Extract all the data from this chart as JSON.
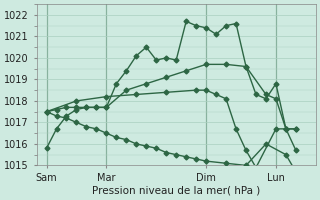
{
  "xlabel": "Pression niveau de la mer( hPa )",
  "bg_color": "#ceeae0",
  "grid_color": "#aacfbf",
  "line_color": "#2d6644",
  "ylim": [
    1015,
    1022.5
  ],
  "yticks": [
    1015,
    1016,
    1017,
    1018,
    1019,
    1020,
    1021,
    1022
  ],
  "xlim": [
    0,
    14
  ],
  "xtick_labels": [
    "Sam",
    "Mar",
    "Dim",
    "Lun"
  ],
  "xtick_pos": [
    0.5,
    3.5,
    8.5,
    12.0
  ],
  "vlines": [
    0.5,
    3.5,
    8.5,
    12.0
  ],
  "series": [
    {
      "x": [
        0.5,
        1.0,
        1.5,
        2.0,
        2.5,
        3.0,
        3.5,
        4.0,
        4.5,
        5.0,
        5.5,
        6.0,
        6.5,
        7.0,
        7.5,
        8.0,
        8.5,
        9.0,
        9.5,
        10.0,
        10.5,
        11.0,
        11.5,
        12.0,
        12.5,
        13.0
      ],
      "y": [
        1015.8,
        1016.7,
        1017.3,
        1017.6,
        1017.7,
        1017.7,
        1017.7,
        1018.8,
        1019.4,
        1020.1,
        1020.5,
        1019.9,
        1020.0,
        1019.9,
        1021.7,
        1021.5,
        1021.4,
        1021.1,
        1021.5,
        1021.6,
        1019.6,
        1018.3,
        1018.1,
        1018.8,
        1016.7,
        1016.7
      ]
    },
    {
      "x": [
        0.5,
        1.0,
        1.5,
        2.0,
        2.5,
        3.0,
        3.5,
        4.5,
        5.5,
        6.5,
        7.5,
        8.5,
        9.5,
        10.5,
        11.5,
        12.0,
        12.5,
        13.0
      ],
      "y": [
        1017.5,
        1017.6,
        1017.7,
        1017.7,
        1017.7,
        1017.7,
        1017.7,
        1018.5,
        1018.8,
        1019.1,
        1019.4,
        1019.7,
        1019.7,
        1019.6,
        1018.3,
        1018.1,
        1016.7,
        1016.7
      ]
    },
    {
      "x": [
        0.5,
        2.0,
        3.5,
        5.0,
        6.5,
        8.0,
        8.5,
        9.0,
        9.5,
        10.0,
        10.5,
        11.0,
        12.0,
        12.5,
        13.0
      ],
      "y": [
        1017.5,
        1018.0,
        1018.2,
        1018.3,
        1018.4,
        1018.5,
        1018.5,
        1018.3,
        1018.1,
        1016.7,
        1015.7,
        1014.9,
        1016.7,
        1016.7,
        1015.7
      ]
    },
    {
      "x": [
        0.5,
        1.0,
        1.5,
        2.0,
        2.5,
        3.0,
        3.5,
        4.0,
        4.5,
        5.0,
        5.5,
        6.0,
        6.5,
        7.0,
        7.5,
        8.0,
        8.5,
        9.5,
        10.5,
        11.5,
        12.5,
        13.0
      ],
      "y": [
        1017.5,
        1017.3,
        1017.2,
        1017.0,
        1016.8,
        1016.7,
        1016.5,
        1016.3,
        1016.2,
        1016.0,
        1015.9,
        1015.8,
        1015.6,
        1015.5,
        1015.4,
        1015.3,
        1015.2,
        1015.1,
        1015.0,
        1016.0,
        1015.5,
        1014.7
      ]
    }
  ],
  "marker": "D",
  "markersize": 2.5,
  "linewidth": 1.0
}
